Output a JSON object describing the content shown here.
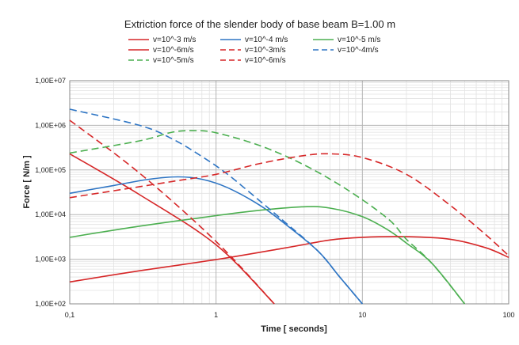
{
  "chart_data": {
    "type": "line",
    "title": "Extriction force of  the slender  body of base beam  B=1.00 m",
    "xlabel": "Time [ seconds]",
    "ylabel": "Force [ N/m ]",
    "x_scale": "log",
    "y_scale": "log",
    "xlim": [
      0.1,
      100
    ],
    "ylim": [
      100,
      10000000
    ],
    "x_ticks": [
      {
        "value": 0.1,
        "label": "0,1"
      },
      {
        "value": 1,
        "label": "1"
      },
      {
        "value": 10,
        "label": "10"
      },
      {
        "value": 100,
        "label": "100"
      }
    ],
    "y_ticks": [
      {
        "value": 100,
        "label": "1,00E+02"
      },
      {
        "value": 1000,
        "label": "1,00E+03"
      },
      {
        "value": 10000,
        "label": "1,00E+04"
      },
      {
        "value": 100000,
        "label": "1,00E+05"
      },
      {
        "value": 1000000,
        "label": "1,00E+06"
      },
      {
        "value": 10000000,
        "label": "1,00E+07"
      }
    ],
    "grid": true,
    "legend_position": "top",
    "series": [
      {
        "name": "v=10^-3 m/s",
        "color": "#d62728",
        "dash": false,
        "points": [
          [
            0.1,
            230000
          ],
          [
            0.3,
            28000
          ],
          [
            1,
            2100
          ],
          [
            2.5,
            100
          ]
        ]
      },
      {
        "name": "v=10^-4 m/s",
        "color": "#2e75c4",
        "dash": false,
        "points": [
          [
            0.1,
            30000
          ],
          [
            0.2,
            45000
          ],
          [
            0.35,
            62000
          ],
          [
            0.55,
            70000
          ],
          [
            0.8,
            62000
          ],
          [
            1.2,
            40000
          ],
          [
            2,
            16000
          ],
          [
            3,
            6000
          ],
          [
            5,
            1500
          ],
          [
            7,
            400
          ],
          [
            10,
            100
          ]
        ]
      },
      {
        "name": "v=10^-5 m/s",
        "color": "#4caf50",
        "dash": false,
        "points": [
          [
            0.1,
            3100
          ],
          [
            0.3,
            5500
          ],
          [
            1,
            9500
          ],
          [
            2,
            12500
          ],
          [
            4,
            15000
          ],
          [
            6,
            14000
          ],
          [
            10,
            9000
          ],
          [
            15,
            4500
          ],
          [
            20,
            2300
          ],
          [
            30,
            800
          ],
          [
            50,
            100
          ]
        ]
      },
      {
        "name": "v=10^-6m/s",
        "color": "#d62728",
        "dash": false,
        "points": [
          [
            0.1,
            310
          ],
          [
            0.3,
            550
          ],
          [
            1,
            980
          ],
          [
            3,
            1800
          ],
          [
            6,
            2700
          ],
          [
            10,
            3100
          ],
          [
            20,
            3200
          ],
          [
            40,
            2800
          ],
          [
            70,
            1800
          ],
          [
            100,
            1100
          ]
        ]
      },
      {
        "name": "v=10^-3m/s",
        "color": "#d62728",
        "dash": true,
        "points": [
          [
            0.1,
            1300000
          ],
          [
            0.3,
            85000
          ],
          [
            1,
            2500
          ],
          [
            2.5,
            100
          ]
        ]
      },
      {
        "name": "v=10^-4m/s",
        "color": "#2e75c4",
        "dash": true,
        "points": [
          [
            0.1,
            2300000
          ],
          [
            0.3,
            1000000
          ],
          [
            0.5,
            500000
          ],
          [
            0.8,
            200000
          ],
          [
            1.2,
            80000
          ],
          [
            2,
            20000
          ],
          [
            3,
            6500
          ],
          [
            5,
            1500
          ],
          [
            7,
            400
          ],
          [
            10,
            100
          ]
        ]
      },
      {
        "name": "v=10^-5m/s",
        "color": "#4caf50",
        "dash": true,
        "points": [
          [
            0.1,
            240000
          ],
          [
            0.3,
            450000
          ],
          [
            0.5,
            700000
          ],
          [
            0.7,
            760000
          ],
          [
            1,
            680000
          ],
          [
            2,
            350000
          ],
          [
            4,
            130000
          ],
          [
            8,
            35000
          ],
          [
            15,
            8000
          ],
          [
            20,
            2800
          ],
          [
            30,
            800
          ],
          [
            50,
            100
          ]
        ]
      },
      {
        "name": "v=10^-6m/s",
        "color": "#d62728",
        "dash": true,
        "points": [
          [
            0.1,
            24000
          ],
          [
            0.5,
            55000
          ],
          [
            1,
            80000
          ],
          [
            2,
            140000
          ],
          [
            4,
            210000
          ],
          [
            6,
            230000
          ],
          [
            10,
            190000
          ],
          [
            20,
            80000
          ],
          [
            40,
            16000
          ],
          [
            70,
            3500
          ],
          [
            100,
            1200
          ]
        ]
      }
    ]
  }
}
